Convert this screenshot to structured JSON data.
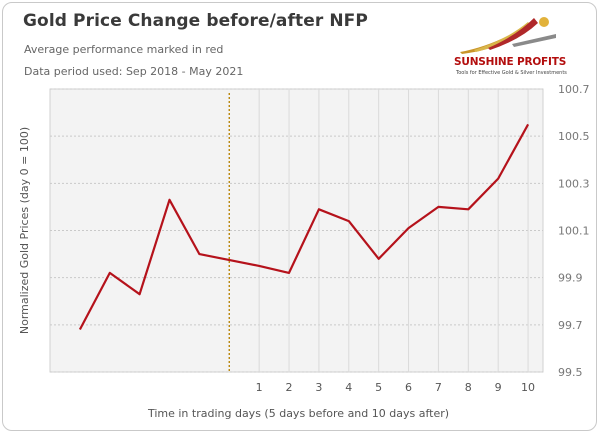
{
  "header": {
    "title": "Gold Price Change before/after NFP",
    "subtitle": "Average performance marked in red",
    "period": "Data period used: Sep 2018 - May 2021"
  },
  "logo": {
    "name": "SUNSHINE PROFITS",
    "tagline": "Tools for Effective Gold & Silver Investments"
  },
  "chart_data": {
    "type": "line",
    "xlabel": "Time in trading days (5 days before and 10 days after)",
    "ylabel": "Normalized Gold Prices (day 0 = 100)",
    "x": [
      -5,
      -4,
      -3,
      -2,
      -1,
      0,
      1,
      2,
      3,
      4,
      5,
      6,
      7,
      8,
      9,
      10
    ],
    "x_tick_labels": [
      "",
      "",
      "",
      "",
      "",
      "",
      "1",
      "2",
      "3",
      "4",
      "5",
      "6",
      "7",
      "8",
      "9",
      "10"
    ],
    "series": [
      {
        "values": [
          99.68,
          99.92,
          99.83,
          100.23,
          100.0,
          99.95,
          99.92,
          100.19,
          100.14,
          99.98,
          100.11,
          100.2,
          100.19,
          100.32,
          100.55
        ],
        "x": [
          -5,
          -4,
          -3,
          -2,
          -1,
          1,
          2,
          3,
          4,
          5,
          6,
          7,
          8,
          9,
          10
        ],
        "color": "#b5121b"
      }
    ],
    "ylim": [
      99.5,
      100.7
    ],
    "y_ticks": [
      99.5,
      99.7,
      99.9,
      100.1,
      100.3,
      100.5,
      100.7
    ],
    "y_axis_position": "right",
    "grid": true,
    "vertical_marker": {
      "x": 0,
      "style": "dotted",
      "color": "#b8860b"
    },
    "plot_background": "#f3f3f3"
  }
}
